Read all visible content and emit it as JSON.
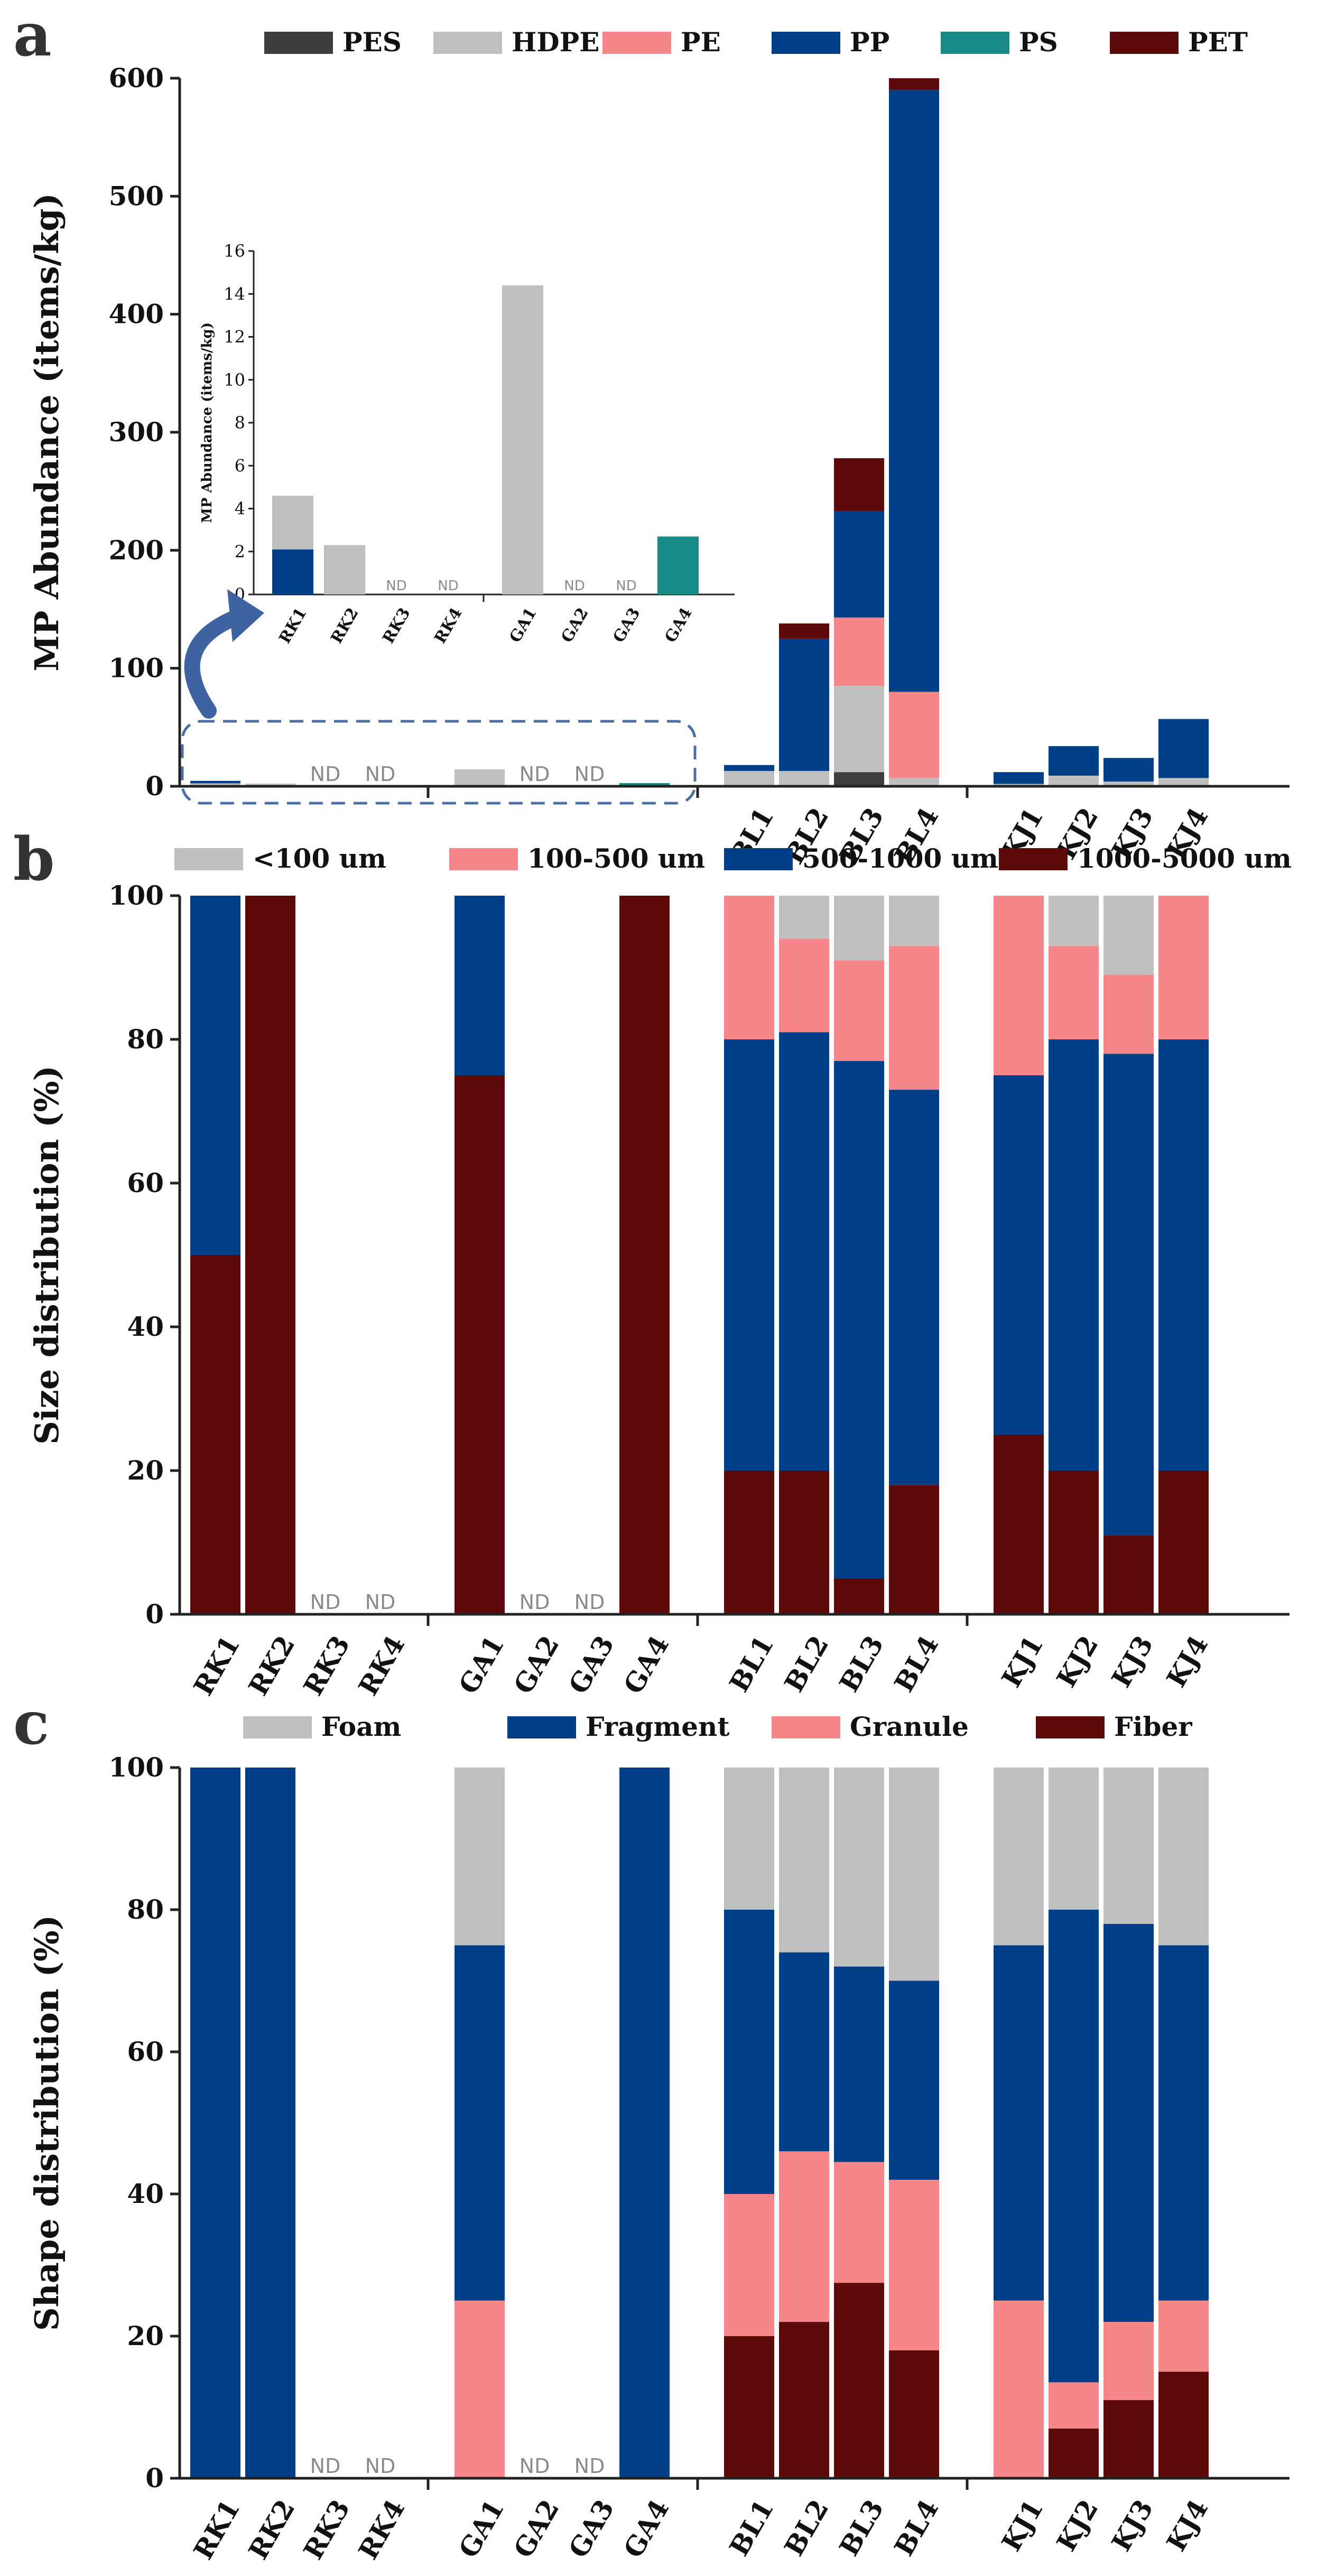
{
  "nd_label": "ND",
  "chart_data": [
    {
      "panel": "a",
      "type": "bar",
      "stacked": true,
      "ylabel": "MP Abundance (items/kg)",
      "ylim": [
        0,
        600
      ],
      "yticks": [
        0,
        100,
        200,
        300,
        400,
        500,
        600
      ],
      "legend_position": "top",
      "categories": [
        "RK1",
        "RK2",
        "RK3",
        "RK4",
        "GA1",
        "GA2",
        "GA3",
        "GA4",
        "BL1",
        "BL2",
        "BL3",
        "BL4",
        "KJ1",
        "KJ2",
        "KJ3",
        "KJ4"
      ],
      "shown_x_labels": [
        "BL1",
        "BL2",
        "BL3",
        "BL4",
        "KJ1",
        "KJ2",
        "KJ3",
        "KJ4"
      ],
      "not_detected": [
        "RK3",
        "RK4",
        "GA2",
        "GA3"
      ],
      "series": [
        {
          "name": "PES",
          "color": "#3d3d3d",
          "values": [
            0,
            0,
            0,
            0,
            0,
            0,
            0,
            0,
            0,
            0,
            12,
            0,
            0,
            0,
            0,
            0
          ]
        },
        {
          "name": "HDPE",
          "color": "#bfbfbf",
          "values": [
            2.5,
            2.3,
            0,
            0,
            14.4,
            0,
            0,
            0,
            13,
            13,
            73,
            7,
            2,
            9,
            4,
            7
          ]
        },
        {
          "name": "PE",
          "color": "#f7868a",
          "values": [
            0,
            0,
            0,
            0,
            0,
            0,
            0,
            0,
            0,
            0,
            58,
            73,
            0,
            0,
            0,
            0
          ]
        },
        {
          "name": "PP",
          "color": "#003f87",
          "values": [
            2.1,
            0,
            0,
            0,
            0,
            0,
            0,
            0,
            5,
            112,
            90,
            510,
            10,
            25,
            20,
            50
          ]
        },
        {
          "name": "PS",
          "color": "#168a84",
          "values": [
            0,
            0,
            0,
            0,
            0,
            0,
            0,
            2.7,
            0,
            0,
            0,
            0,
            0,
            0,
            0,
            0
          ]
        },
        {
          "name": "PET",
          "color": "#5d0a0a",
          "values": [
            0,
            0,
            0,
            0,
            0,
            0,
            0,
            0,
            0,
            13,
            45,
            10,
            0,
            0,
            0,
            0
          ]
        }
      ],
      "inset": {
        "ylabel": "MP Abundance (items/kg)",
        "ylim": [
          0,
          16
        ],
        "yticks": [
          0,
          2,
          4,
          6,
          8,
          10,
          12,
          14,
          16
        ],
        "categories": [
          "RK1",
          "RK2",
          "RK3",
          "RK4",
          "GA1",
          "GA2",
          "GA3",
          "GA4"
        ],
        "not_detected": [
          "RK3",
          "RK4",
          "GA2",
          "GA3"
        ],
        "series": [
          {
            "name": "PP",
            "color": "#003f87",
            "values": [
              2.1,
              0,
              0,
              0,
              0,
              0,
              0,
              0
            ]
          },
          {
            "name": "HDPE",
            "color": "#bfbfbf",
            "values": [
              2.5,
              2.3,
              0,
              0,
              14.4,
              0,
              0,
              0
            ]
          },
          {
            "name": "PS",
            "color": "#168a84",
            "values": [
              0,
              0,
              0,
              0,
              0,
              0,
              0,
              2.7
            ]
          }
        ]
      }
    },
    {
      "panel": "b",
      "type": "bar",
      "stacked": true,
      "ylabel": "Size distribution (%)",
      "ylim": [
        0,
        100
      ],
      "yticks": [
        0,
        20,
        40,
        60,
        80,
        100
      ],
      "legend_position": "top",
      "categories": [
        "RK1",
        "RK2",
        "RK3",
        "RK4",
        "GA1",
        "GA2",
        "GA3",
        "GA4",
        "BL1",
        "BL2",
        "BL3",
        "BL4",
        "KJ1",
        "KJ2",
        "KJ3",
        "KJ4"
      ],
      "not_detected": [
        "RK3",
        "RK4",
        "GA2",
        "GA3"
      ],
      "series": [
        {
          "name": "1000-5000 um",
          "color": "#5d0a0a",
          "values": [
            50,
            100,
            0,
            0,
            75,
            0,
            0,
            100,
            20,
            20,
            5,
            18,
            25,
            20,
            11,
            20
          ]
        },
        {
          "name": "500-1000 um",
          "color": "#003f87",
          "values": [
            50,
            0,
            0,
            0,
            25,
            0,
            0,
            0,
            60,
            61,
            72,
            55,
            50,
            60,
            67,
            60
          ]
        },
        {
          "name": "100-500 um",
          "color": "#f7868a",
          "values": [
            0,
            0,
            0,
            0,
            0,
            0,
            0,
            0,
            20,
            13,
            14,
            20,
            25,
            13,
            11,
            20
          ]
        },
        {
          "name": "<100 um",
          "color": "#bfbfbf",
          "values": [
            0,
            0,
            0,
            0,
            0,
            0,
            0,
            0,
            0,
            6,
            9,
            7,
            0,
            7,
            11,
            0
          ]
        }
      ],
      "legend_order": [
        "<100 um",
        "100-500 um",
        "500-1000 um",
        "1000-5000 um"
      ]
    },
    {
      "panel": "c",
      "type": "bar",
      "stacked": true,
      "ylabel": "Shape distribution (%)",
      "ylim": [
        0,
        100
      ],
      "yticks": [
        0,
        20,
        40,
        60,
        80,
        100
      ],
      "legend_position": "top",
      "categories": [
        "RK1",
        "RK2",
        "RK3",
        "RK4",
        "GA1",
        "GA2",
        "GA3",
        "GA4",
        "BL1",
        "BL2",
        "BL3",
        "BL4",
        "KJ1",
        "KJ2",
        "KJ3",
        "KJ4"
      ],
      "not_detected": [
        "RK3",
        "RK4",
        "GA2",
        "GA3"
      ],
      "series": [
        {
          "name": "Fiber",
          "color": "#5d0a0a",
          "values": [
            0,
            0,
            0,
            0,
            0,
            0,
            0,
            0,
            20,
            22,
            27.5,
            18,
            0,
            7,
            11,
            15
          ]
        },
        {
          "name": "Granule",
          "color": "#f7868a",
          "values": [
            0,
            0,
            0,
            0,
            25,
            0,
            0,
            0,
            20,
            24,
            17,
            24,
            25,
            6.5,
            11,
            10
          ]
        },
        {
          "name": "Fragment",
          "color": "#003f87",
          "values": [
            100,
            100,
            0,
            0,
            50,
            0,
            0,
            100,
            40,
            28,
            27.5,
            28,
            50,
            66.5,
            56,
            50
          ]
        },
        {
          "name": "Foam",
          "color": "#bfbfbf",
          "values": [
            0,
            0,
            0,
            0,
            25,
            0,
            0,
            0,
            20,
            26,
            28,
            30,
            25,
            20,
            22,
            25
          ]
        }
      ],
      "legend_order": [
        "Foam",
        "Fragment",
        "Granule",
        "Fiber"
      ]
    }
  ]
}
